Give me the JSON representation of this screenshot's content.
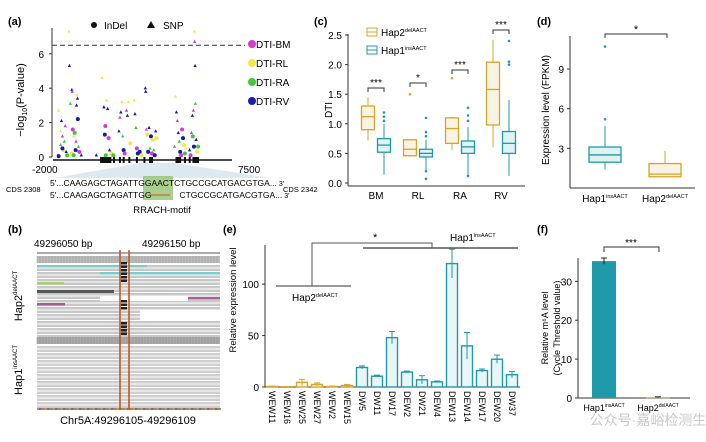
{
  "colors": {
    "hap2": "#d4a52a",
    "hap1": "#1f9aa8",
    "bm": "#d63ad6",
    "rl": "#f2e84a",
    "ra": "#3fc83f",
    "rv": "#1a1aa8",
    "highlight": "#8cbf6a",
    "igv_line": "#c8561c",
    "watermark": "#bbbbbb"
  },
  "watermark": "公众号·嘉峪检测生物",
  "chart_data": [
    {
      "panel": "(a)",
      "type": "scatter",
      "ylabel": "−log10(P-value)",
      "ylabel_main": "−log",
      "ylabel_sub": "10",
      "ylabel_tail": "(P-value)",
      "xlim": [
        -2000,
        7500
      ],
      "ylim": [
        0,
        7.5
      ],
      "yticks": [
        "0",
        "2",
        "4",
        "6"
      ],
      "xtick_left": "-2000",
      "xtick_right": "7500",
      "threshold": 6.5,
      "marker_legend": [
        {
          "label": "InDel",
          "shape": "circle"
        },
        {
          "label": "SNP",
          "shape": "triangle"
        }
      ],
      "series_legend": [
        {
          "label": "DTI-BM",
          "key": "bm"
        },
        {
          "label": "DTI-RL",
          "key": "rl"
        },
        {
          "label": "DTI-RA",
          "key": "ra"
        },
        {
          "label": "DTI-RV",
          "key": "rv"
        }
      ],
      "points": [
        [
          -1700,
          0.05,
          "rv",
          "c"
        ],
        [
          -1600,
          0.7,
          "ra",
          "t"
        ],
        [
          -1550,
          2.1,
          "rv",
          "t"
        ],
        [
          -1500,
          1.2,
          "bm",
          "t"
        ],
        [
          -1450,
          0.4,
          "rl",
          "c"
        ],
        [
          -1400,
          0.9,
          "ra",
          "t"
        ],
        [
          -1350,
          1.8,
          "bm",
          "t"
        ],
        [
          -1300,
          0.3,
          "rv",
          "t"
        ],
        [
          -1250,
          0.1,
          "ra",
          "c"
        ],
        [
          -1600,
          1.5,
          "rl",
          "t"
        ],
        [
          -1500,
          0.5,
          "rv",
          "c"
        ],
        [
          -1700,
          2.7,
          "rl",
          "t"
        ],
        [
          -1150,
          7.3,
          "rl",
          "t"
        ],
        [
          -1130,
          5.3,
          "rv",
          "t"
        ],
        [
          -1080,
          3.1,
          "ra",
          "t"
        ],
        [
          -1000,
          3.9,
          "rv",
          "t"
        ],
        [
          -980,
          3.8,
          "bm",
          "t"
        ],
        [
          -950,
          1.6,
          "bm",
          "c"
        ],
        [
          -900,
          1.2,
          "rl",
          "t"
        ],
        [
          -850,
          1.4,
          "ra",
          "c"
        ],
        [
          -800,
          0.4,
          "rv",
          "c"
        ],
        [
          -780,
          0.9,
          "bm",
          "t"
        ],
        [
          -750,
          3.0,
          "rv",
          "t"
        ],
        [
          -720,
          3.6,
          "rl",
          "t"
        ],
        [
          -700,
          3.4,
          "rv",
          "t"
        ],
        [
          -680,
          2.2,
          "rv",
          "c"
        ],
        [
          -650,
          0.6,
          "ra",
          "t"
        ],
        [
          -600,
          0.3,
          "bm",
          "c"
        ],
        [
          -1000,
          0.2,
          "rl",
          "c"
        ],
        [
          -900,
          0.1,
          "ra",
          "c"
        ],
        [
          -500,
          0.1,
          "rv",
          "t"
        ],
        [
          300,
          0.1,
          "rv",
          "t"
        ],
        [
          600,
          4.6,
          "rl",
          "t"
        ],
        [
          700,
          2.9,
          "rv",
          "t"
        ],
        [
          750,
          1.3,
          "rv",
          "c"
        ],
        [
          780,
          1.8,
          "bm",
          "c"
        ],
        [
          800,
          0.1,
          "ra",
          "c"
        ],
        [
          850,
          3.3,
          "rl",
          "t"
        ],
        [
          900,
          2.8,
          "rv",
          "t"
        ],
        [
          950,
          1.1,
          "bm",
          "c"
        ],
        [
          1000,
          0.4,
          "rv",
          "t"
        ],
        [
          1100,
          0.2,
          "rl",
          "c"
        ],
        [
          1200,
          0.1,
          "ra",
          "c"
        ],
        [
          1500,
          1.5,
          "rv",
          "t"
        ],
        [
          1550,
          2.3,
          "bm",
          "t"
        ],
        [
          1600,
          2.6,
          "rv",
          "t"
        ],
        [
          1650,
          3.2,
          "rl",
          "t"
        ],
        [
          1700,
          1.2,
          "ra",
          "t"
        ],
        [
          1750,
          0.4,
          "rv",
          "c"
        ],
        [
          1800,
          0.2,
          "bm",
          "c"
        ],
        [
          1900,
          2.7,
          "bm",
          "t"
        ],
        [
          1950,
          2.4,
          "rv",
          "t"
        ],
        [
          2000,
          3.2,
          "rl",
          "t"
        ],
        [
          2100,
          0.8,
          "rl",
          "c"
        ],
        [
          2300,
          3.3,
          "rl",
          "t"
        ],
        [
          2350,
          2.5,
          "rv",
          "t"
        ],
        [
          2400,
          1.7,
          "ra",
          "t"
        ],
        [
          2450,
          0.5,
          "bm",
          "c"
        ],
        [
          2500,
          0.2,
          "rv",
          "c"
        ],
        [
          2600,
          0.3,
          "rv",
          "c"
        ],
        [
          2700,
          0.1,
          "rl",
          "c"
        ],
        [
          2900,
          4.0,
          "rv",
          "t"
        ],
        [
          2920,
          3.8,
          "rv",
          "t"
        ],
        [
          2950,
          1.6,
          "bm",
          "t"
        ],
        [
          3000,
          1.3,
          "rl",
          "c"
        ],
        [
          3050,
          0.3,
          "rv",
          "c"
        ],
        [
          3100,
          1.7,
          "rv",
          "t"
        ],
        [
          3150,
          0.5,
          "ra",
          "t"
        ],
        [
          3200,
          1.2,
          "rv",
          "c"
        ],
        [
          3250,
          0.2,
          "bm",
          "c"
        ],
        [
          3300,
          1.0,
          "rl",
          "c"
        ],
        [
          3350,
          0.4,
          "ra",
          "t"
        ],
        [
          3400,
          0.1,
          "rv",
          "c"
        ],
        [
          3450,
          1.5,
          "rv",
          "t"
        ],
        [
          3500,
          1.1,
          "rl",
          "c"
        ],
        [
          4500,
          3.5,
          "rl",
          "t"
        ],
        [
          4550,
          2.6,
          "rv",
          "t"
        ],
        [
          4600,
          2.1,
          "bm",
          "t"
        ],
        [
          4650,
          1.4,
          "rv",
          "t"
        ],
        [
          4700,
          0.9,
          "ra",
          "t"
        ],
        [
          4750,
          0.3,
          "rv",
          "c"
        ],
        [
          4800,
          0.1,
          "bm",
          "c"
        ],
        [
          4850,
          1.6,
          "bm",
          "c"
        ],
        [
          4900,
          1.1,
          "rv",
          "c"
        ],
        [
          4950,
          0.7,
          "rl",
          "c"
        ],
        [
          5000,
          0.2,
          "ra",
          "c"
        ],
        [
          5050,
          0.5,
          "rl",
          "t"
        ],
        [
          4450,
          0.6,
          "ra",
          "t"
        ],
        [
          5500,
          7.3,
          "rl",
          "t"
        ],
        [
          5520,
          6.7,
          "bm",
          "t"
        ],
        [
          5540,
          5.3,
          "rv",
          "t"
        ],
        [
          5560,
          3.1,
          "ra",
          "t"
        ],
        [
          5450,
          2.7,
          "bm",
          "t"
        ],
        [
          5400,
          2.4,
          "rv",
          "t"
        ],
        [
          5350,
          1.4,
          "bm",
          "t"
        ],
        [
          5420,
          1.2,
          "ra",
          "c"
        ],
        [
          5480,
          0.6,
          "rv",
          "c"
        ],
        [
          5600,
          1.0,
          "rv",
          "t"
        ],
        [
          5650,
          0.3,
          "rl",
          "c"
        ],
        [
          5700,
          0.6,
          "ra",
          "c"
        ],
        [
          5300,
          0.1,
          "bm",
          "c"
        ],
        [
          5250,
          0.4,
          "rv",
          "t"
        ]
      ],
      "gene_exons": [
        [
          500,
          1100
        ],
        [
          1180,
          1260
        ],
        [
          1500,
          1600
        ],
        [
          1700,
          1800
        ],
        [
          2000,
          2080
        ],
        [
          2400,
          2480
        ],
        [
          2800,
          2900
        ],
        [
          3100,
          3150
        ],
        [
          3200,
          3260
        ],
        [
          4500,
          4800
        ],
        [
          4950,
          5050
        ],
        [
          5200,
          5300
        ],
        [
          5400,
          5750
        ]
      ],
      "cds_left": "CDS 2308",
      "cds_right": "CDS 2342",
      "seq_prefix": "5'...",
      "seq_top_a": "CAAGAGCTAGATTGG",
      "seq_top_motif": "AACT",
      "seq_top_b": "CTGCCGCATGACGTGA...",
      "seq_bot_a": "CAAGAGCTAGATTGG",
      "seq_bot_b": "CTGCCGCATGACGTGA...",
      "seq_suffix": "3'",
      "motif_label": "RRACH-motif"
    },
    {
      "panel": "(c)",
      "type": "box",
      "ylabel": "DTI",
      "ylim": [
        0,
        2.5
      ],
      "yticks": [
        "0.0",
        "0.5",
        "1.0",
        "1.5",
        "2.0",
        "2.5"
      ],
      "categories": [
        "BM",
        "RL",
        "RA",
        "RV"
      ],
      "legend": [
        {
          "label": "Hap2",
          "sup": "delAACT",
          "key": "hap2"
        },
        {
          "label": "Hap1",
          "sup": "insAACT",
          "key": "hap1"
        }
      ],
      "significance": [
        "***",
        "*",
        "***",
        "***"
      ],
      "series": [
        {
          "name": "Hap2delAACT",
          "key": "hap2",
          "boxes": [
            {
              "min": 0.72,
              "q1": 0.9,
              "median": 1.12,
              "q3": 1.3,
              "max": 1.45,
              "outliers": []
            },
            {
              "min": 0.45,
              "q1": 0.46,
              "median": 0.57,
              "q3": 0.73,
              "max": 0.73,
              "outliers": [
                1.5
              ]
            },
            {
              "min": 0.56,
              "q1": 0.67,
              "median": 0.92,
              "q3": 1.1,
              "max": 1.12,
              "outliers": [
                1.77
              ]
            },
            {
              "min": 0.6,
              "q1": 0.98,
              "median": 1.58,
              "q3": 2.04,
              "max": 2.42,
              "outliers": []
            }
          ]
        },
        {
          "name": "Hap1insAACT",
          "key": "hap1",
          "boxes": [
            {
              "min": 0.14,
              "q1": 0.52,
              "median": 0.64,
              "q3": 0.75,
              "max": 1.0,
              "outliers": [
                1.05,
                1.12,
                1.19
              ]
            },
            {
              "min": 0.18,
              "q1": 0.44,
              "median": 0.5,
              "q3": 0.57,
              "max": 0.73,
              "outliers": [
                0.07,
                0.2,
                0.79,
                0.86,
                1.1
              ]
            },
            {
              "min": 0.1,
              "q1": 0.5,
              "median": 0.61,
              "q3": 0.71,
              "max": 0.95,
              "outliers": [
                0.12,
                1.05,
                1.14,
                1.27
              ]
            },
            {
              "min": 0.12,
              "q1": 0.5,
              "median": 0.67,
              "q3": 0.87,
              "max": 1.4,
              "outliers": [
                2.0,
                2.05,
                2.4
              ]
            }
          ]
        }
      ]
    },
    {
      "panel": "(d)",
      "type": "box",
      "ylabel": "Expression level (FPKM)",
      "ylim": [
        0,
        11.5
      ],
      "yticks": [
        "3",
        "6",
        "9"
      ],
      "categories": [
        {
          "label": "Hap1",
          "sup": "insAACT",
          "key": "hap1"
        },
        {
          "label": "Hap2",
          "sup": "delAACT",
          "key": "hap2"
        }
      ],
      "significance": "*",
      "boxes": [
        {
          "min": 1.4,
          "q1": 1.95,
          "median": 2.5,
          "q3": 3.1,
          "max": 4.7,
          "outliers": [
            5.2,
            10.7
          ]
        },
        {
          "min": 0.85,
          "q1": 0.85,
          "median": 1.05,
          "q3": 1.85,
          "max": 2.8,
          "outliers": []
        }
      ]
    },
    {
      "panel": "(e)",
      "type": "bar",
      "ylabel": "Relative expression level",
      "ylim": [
        0,
        140
      ],
      "yticks": [
        "0",
        "50",
        "100"
      ],
      "categories": [
        "WEW11",
        "WEW16",
        "WEW25",
        "WEW27",
        "WEW2",
        "WEW15",
        "DW5",
        "DW11",
        "DW17",
        "DEW2",
        "DW21",
        "DEW4",
        "DEW13",
        "DEW14",
        "DEW17",
        "DEW20",
        "DW37"
      ],
      "values": [
        0.5,
        0.2,
        4.5,
        2.5,
        0.5,
        1.5,
        19,
        10.5,
        48,
        14.5,
        7,
        5,
        120,
        40,
        16,
        27,
        12
      ],
      "errors": [
        0.3,
        0.1,
        3,
        1.5,
        0.3,
        1,
        1.5,
        1,
        6,
        1,
        4,
        0.8,
        14,
        13,
        1.5,
        4,
        3
      ],
      "groups": [
        "hap2",
        "hap2",
        "hap2",
        "hap2",
        "hap2",
        "hap2",
        "hap1",
        "hap1",
        "hap1",
        "hap1",
        "hap1",
        "hap1",
        "hap1",
        "hap1",
        "hap1",
        "hap1",
        "hap1"
      ],
      "group_labels": [
        {
          "label": "Hap2",
          "sup": "delAACT"
        },
        {
          "label": "Hap1",
          "sup": "insAACT"
        }
      ],
      "significance": "*"
    },
    {
      "panel": "(f)",
      "type": "bar",
      "ylabel_line1": "Relative m⁶A level",
      "ylabel_line2": "(Cycle Threshold value)",
      "ylim": [
        0,
        36
      ],
      "yticks": [
        "0",
        "10",
        "20",
        "30"
      ],
      "categories": [
        {
          "label": "Hap1",
          "sup": "insAACT",
          "key": "hap1"
        },
        {
          "label": "Hap2",
          "sup": "delAACT",
          "key": "hap2"
        }
      ],
      "values": [
        35.2,
        0.2
      ],
      "errors": [
        0.8,
        0.1
      ],
      "significance": "***"
    }
  ],
  "igv": {
    "panel": "(b)",
    "ruler_left": "49296050 bp",
    "ruler_right": "49296150 bp",
    "track_top": {
      "label": "Hap2",
      "sup": "delAACT"
    },
    "track_bottom": {
      "label": "Hap1",
      "sup": "insAACT"
    },
    "locus": "Chr5A:49296105-49296109"
  }
}
